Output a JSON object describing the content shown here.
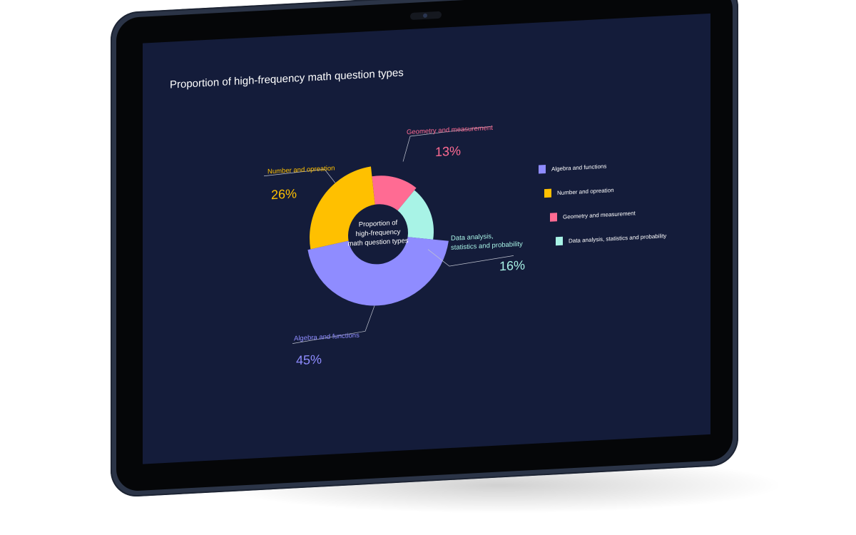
{
  "chart_data": {
    "type": "pie",
    "title": "Proportion of high-frequency math question types",
    "center_label": "Proportion of high-frequency math question types",
    "center_label_lines": [
      "Proportion of",
      "high-frequency",
      "math question types"
    ],
    "donut": true,
    "legend_placement": "right",
    "slices": [
      {
        "label": "Geometry and measurement",
        "value": 13,
        "display": "13%",
        "color": "#ff6b93"
      },
      {
        "label": "Data analysis, statistics and probability",
        "label_lines": [
          "Data analysis,",
          "statistics and probability"
        ],
        "value": 16,
        "display": "16%",
        "color": "#a8f3e6"
      },
      {
        "label": "Algebra and functions",
        "value": 45,
        "display": "45%",
        "color": "#8f8cff"
      },
      {
        "label": "Number and opreation",
        "value": 26,
        "display": "26%",
        "color": "#ffc000"
      }
    ],
    "legend": [
      {
        "label": "Algebra and functions",
        "color": "#8f8cff"
      },
      {
        "label": "Number and opreation",
        "color": "#ffc000"
      },
      {
        "label": "Geometry and measurement",
        "color": "#ff6b93"
      },
      {
        "label": "Data analysis, statistics and probability",
        "color": "#a8f3e6"
      }
    ]
  },
  "colors": {
    "screen_background": "#141c3a",
    "text": "#ffffff"
  }
}
